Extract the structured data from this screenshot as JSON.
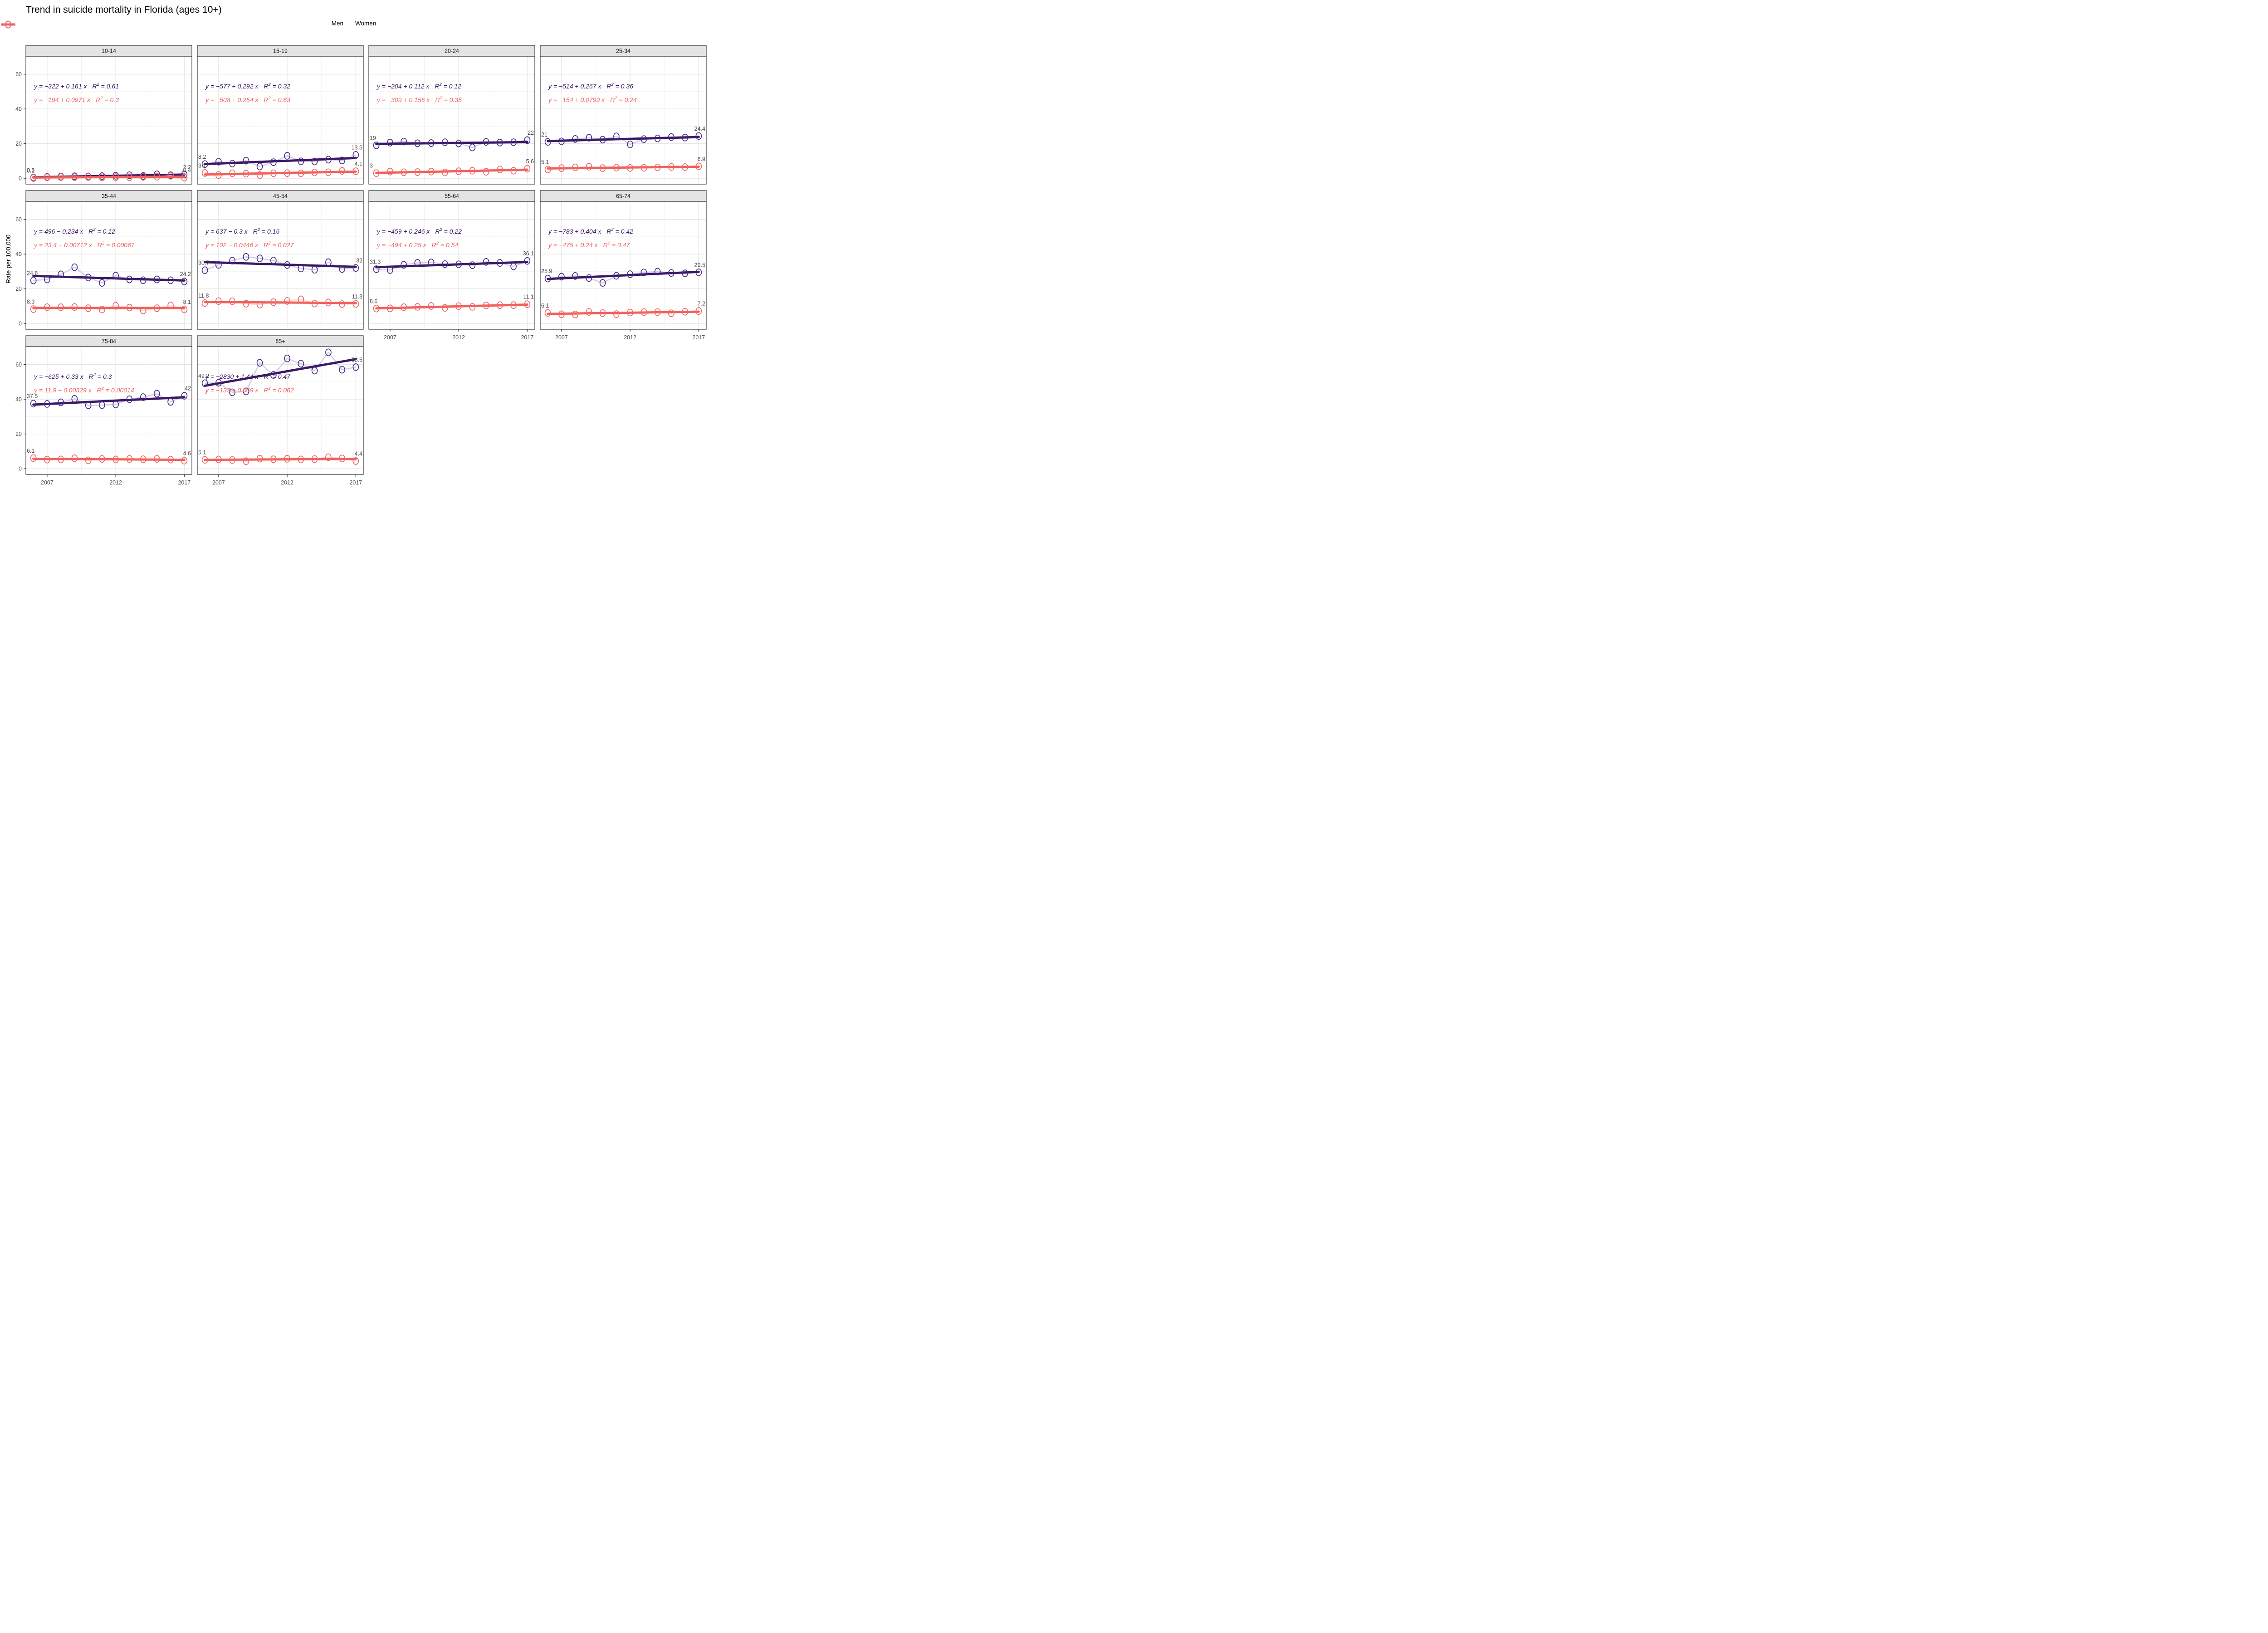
{
  "title": "Trend in suicide mortality in Florida (ages 10+)",
  "legend": {
    "items": [
      {
        "label": "Men",
        "color": "#3A1765",
        "point_color": "#4B2C84"
      },
      {
        "label": "Women",
        "color": "#F0605C",
        "point_color": "#EF6661"
      }
    ]
  },
  "y_axis": {
    "label": "Rate per 100,000",
    "ticks": [
      0,
      20,
      40,
      60
    ]
  },
  "x_axis": {
    "ticks": [
      2007,
      2012,
      2017
    ]
  },
  "chart_data": {
    "type": "line",
    "title": "Trend in suicide mortality in Florida (ages 10+)",
    "ylabel": "Rate per 100,000",
    "x": [
      2006,
      2007,
      2008,
      2009,
      2010,
      2011,
      2012,
      2013,
      2014,
      2015,
      2016,
      2017
    ],
    "x_ticks": [
      2007,
      2012,
      2017
    ],
    "y_ticks": [
      0,
      20,
      40,
      60
    ],
    "xlim": [
      2005.45,
      2017.55
    ],
    "ylim": [
      -3.35,
      70.35
    ],
    "grid": {
      "y_minor": [
        10,
        30,
        50
      ],
      "x_minor": [
        2009.5,
        2014.5
      ]
    },
    "colors": {
      "men_trend": "#3A1765",
      "men_point": "#4B2C84",
      "men_faint": "#D5CCE8",
      "women_trend": "#F0605C",
      "women_point": "#EF6661",
      "women_faint": "#FAD9D6",
      "strip_bg": "#E4E4E4",
      "panel_border": "#333333",
      "grid_major": "#E4E4E4",
      "grid_minor": "#F2F2F2",
      "label_gray": "#4A4A4A"
    },
    "facets": [
      {
        "age_group": "10-14",
        "row": 0,
        "col": 0,
        "men": {
          "values": [
            0.5,
            0.8,
            1.0,
            1.2,
            1.1,
            1.3,
            1.5,
            1.8,
            1.4,
            2.3,
            1.8,
            2.2
          ],
          "first_label": "0.5",
          "last_label": "2.2",
          "equation": "y = −322 + 0.161 x",
          "r2": "0.61"
        },
        "women": {
          "values": [
            0.2,
            0.6,
            0.7,
            0.7,
            0.8,
            0.6,
            0.7,
            0.6,
            0.9,
            1.0,
            1.5,
            0.4
          ],
          "first_label": "0.2",
          "last_label": "0.4",
          "equation": "y = −194 + 0.0971 x",
          "r2": "0.3"
        }
      },
      {
        "age_group": "15-19",
        "row": 0,
        "col": 1,
        "men": {
          "values": [
            8.2,
            9.6,
            8.5,
            10.2,
            6.8,
            9.3,
            13.0,
            9.8,
            9.7,
            10.8,
            10.3,
            13.5
          ],
          "first_label": "8.2",
          "last_label": "13.5",
          "equation": "y = −577 + 0.292 x",
          "r2": "0.32"
        },
        "women": {
          "values": [
            3.1,
            1.9,
            2.9,
            2.7,
            1.9,
            2.9,
            3.0,
            2.9,
            3.4,
            3.5,
            4.3,
            4.1
          ],
          "first_label": "3.1",
          "last_label": "4.1",
          "equation": "y = −508 + 0.254 x",
          "r2": "0.63"
        }
      },
      {
        "age_group": "20-24",
        "row": 0,
        "col": 2,
        "men": {
          "values": [
            19.0,
            20.6,
            21.2,
            20.2,
            20.3,
            20.8,
            20.1,
            17.8,
            21.0,
            20.6,
            20.8,
            22.0
          ],
          "first_label": "19",
          "last_label": "22",
          "equation": "y = −204 + 0.112 x",
          "r2": "0.12"
        },
        "women": {
          "values": [
            3.0,
            3.9,
            3.5,
            3.6,
            3.9,
            3.4,
            4.1,
            4.4,
            3.8,
            5.1,
            4.4,
            5.6
          ],
          "first_label": "3",
          "last_label": "5.6",
          "equation": "y = −309 + 0.156 x",
          "r2": "0.35"
        }
      },
      {
        "age_group": "25-34",
        "row": 0,
        "col": 3,
        "men": {
          "values": [
            21.0,
            21.3,
            22.7,
            23.4,
            22.3,
            24.2,
            19.6,
            22.6,
            23.0,
            23.8,
            23.5,
            24.4
          ],
          "first_label": "21",
          "last_label": "24.4",
          "equation": "y = −514 + 0.267 x",
          "r2": "0.36"
        },
        "women": {
          "values": [
            5.1,
            5.9,
            6.3,
            6.7,
            5.9,
            6.2,
            6.0,
            6.1,
            6.3,
            6.6,
            6.5,
            6.9
          ],
          "first_label": "5.1",
          "last_label": "6.9",
          "equation": "y = −154 + 0.0799 x",
          "r2": "0.24"
        }
      },
      {
        "age_group": "35-44",
        "row": 1,
        "col": 0,
        "men": {
          "values": [
            24.8,
            25.4,
            28.3,
            32.4,
            26.5,
            23.4,
            27.6,
            25.4,
            24.9,
            25.4,
            24.9,
            24.2
          ],
          "first_label": "24.8",
          "last_label": "24.2",
          "equation": "y = 496 − 0.234 x",
          "r2": "0.12"
        },
        "women": {
          "values": [
            8.3,
            9.4,
            9.4,
            9.5,
            8.8,
            8.1,
            10.2,
            9.2,
            7.5,
            8.8,
            10.4,
            8.1
          ],
          "first_label": "8.3",
          "last_label": "8.1",
          "equation": "y = 23.4 − 0.00712 x",
          "r2": "0.00061"
        }
      },
      {
        "age_group": "45-54",
        "row": 1,
        "col": 1,
        "men": {
          "values": [
            30.7,
            33.8,
            36.2,
            38.4,
            37.5,
            36.3,
            33.7,
            31.7,
            31.0,
            35.3,
            31.4,
            32.0
          ],
          "first_label": "30.7",
          "last_label": "32",
          "equation": "y = 637 − 0.3 x",
          "r2": "0.16"
        },
        "women": {
          "values": [
            11.8,
            12.9,
            12.8,
            11.4,
            10.9,
            12.3,
            13.0,
            13.9,
            11.5,
            12.1,
            11.2,
            11.3
          ],
          "first_label": "11.8",
          "last_label": "11.3",
          "equation": "y = 102 − 0.0446 x",
          "r2": "0.027"
        }
      },
      {
        "age_group": "55-64",
        "row": 1,
        "col": 2,
        "men": {
          "values": [
            31.3,
            30.8,
            33.8,
            34.9,
            35.2,
            34.2,
            34.1,
            33.6,
            35.5,
            34.9,
            32.9,
            36.1
          ],
          "first_label": "31.3",
          "last_label": "36.1",
          "equation": "y = −459 + 0.246 x",
          "r2": "0.22"
        },
        "women": {
          "values": [
            8.6,
            8.7,
            9.4,
            9.6,
            10.1,
            9.0,
            10.0,
            9.6,
            10.4,
            10.6,
            10.6,
            11.1
          ],
          "first_label": "8.6",
          "last_label": "11.1",
          "equation": "y = −494 + 0.25 x",
          "r2": "0.54"
        }
      },
      {
        "age_group": "65-74",
        "row": 1,
        "col": 3,
        "men": {
          "values": [
            25.9,
            27.0,
            27.4,
            26.2,
            23.4,
            27.5,
            28.4,
            29.4,
            29.9,
            29.1,
            28.9,
            29.5
          ],
          "first_label": "25.9",
          "last_label": "29.5",
          "equation": "y = −783 + 0.404 x",
          "r2": "0.42"
        },
        "women": {
          "values": [
            6.1,
            5.3,
            5.2,
            6.7,
            6.0,
            5.4,
            6.3,
            6.6,
            6.6,
            5.9,
            6.8,
            7.2
          ],
          "first_label": "6.1",
          "last_label": "7.2",
          "equation": "y = −475 + 0.24 x",
          "r2": "0.47"
        }
      },
      {
        "age_group": "75-84",
        "row": 2,
        "col": 0,
        "men": {
          "values": [
            37.5,
            37.3,
            38.2,
            40.2,
            36.5,
            36.6,
            37.0,
            40.0,
            41.2,
            43.2,
            38.5,
            42.0
          ],
          "first_label": "37.5",
          "last_label": "42",
          "equation": "y = −625 + 0.33 x",
          "r2": "0.3"
        },
        "women": {
          "values": [
            6.1,
            5.2,
            5.3,
            6.0,
            4.8,
            5.6,
            5.3,
            5.6,
            5.4,
            5.6,
            5.2,
            4.6
          ],
          "first_label": "6.1",
          "last_label": "4.6",
          "equation": "y = 11.9 − 0.00329 x",
          "r2": "0.00014"
        }
      },
      {
        "age_group": "85+",
        "row": 2,
        "col": 1,
        "men": {
          "values": [
            49.2,
            49.5,
            44.0,
            44.5,
            61.0,
            54.0,
            63.5,
            60.5,
            56.5,
            67.0,
            57.0,
            58.5
          ],
          "first_label": "49.2",
          "last_label": "58.5",
          "equation": "y = −2830 + 1.44 x",
          "r2": "0.47"
        },
        "women": {
          "values": [
            5.1,
            5.3,
            5.0,
            4.3,
            5.8,
            5.4,
            5.7,
            5.3,
            5.5,
            6.6,
            5.9,
            4.4
          ],
          "first_label": "5.1",
          "last_label": "4.4",
          "equation": "y = −133 + 0.069 x",
          "r2": "0.062"
        }
      }
    ],
    "legend_position": "top",
    "facets_with_x_axis": [
      "55-64",
      "65-74",
      "75-84",
      "85+"
    ],
    "facets_with_y_axis": [
      "10-14",
      "35-44",
      "75-84"
    ]
  }
}
